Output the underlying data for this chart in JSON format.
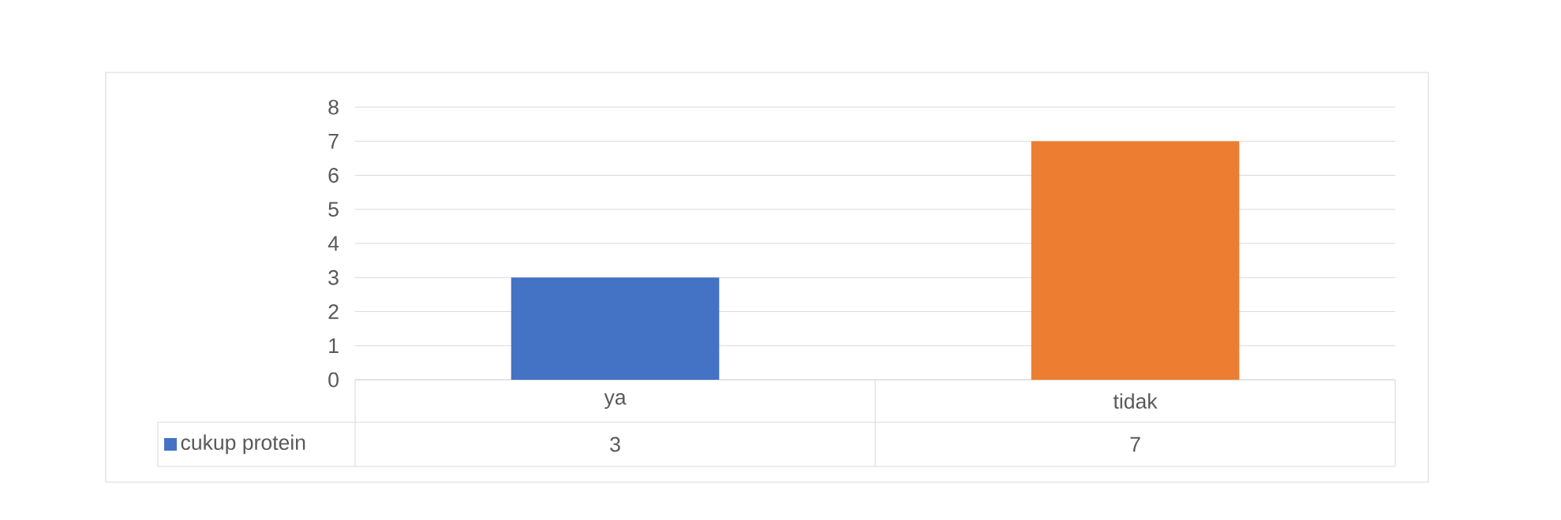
{
  "chart_data": {
    "type": "bar",
    "categories": [
      "ya",
      "tidak"
    ],
    "series": [
      {
        "name": "cukup protein",
        "color": "#4472c4",
        "colors": [
          "#4472c4",
          "#ed7d31"
        ],
        "values": [
          3,
          7
        ]
      }
    ],
    "ylim": [
      0,
      8
    ],
    "yticks": [
      0,
      1,
      2,
      3,
      4,
      5,
      6,
      7,
      8
    ],
    "grid": "y",
    "legend": "bottom",
    "data_labels": true
  }
}
